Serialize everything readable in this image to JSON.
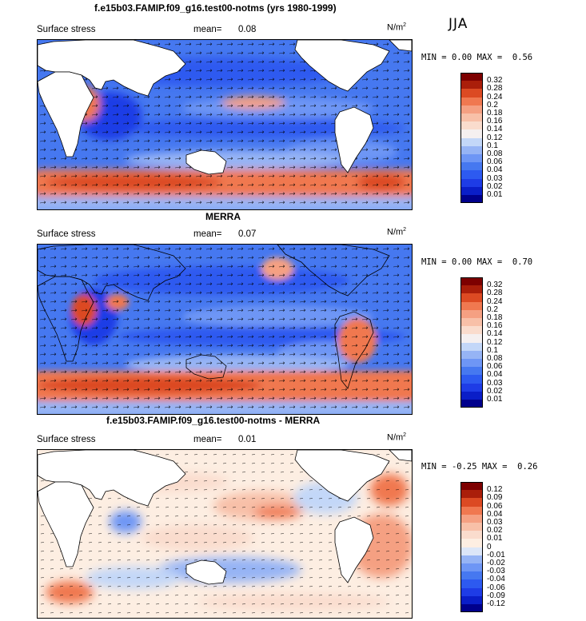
{
  "season": "JJA",
  "unit": "N/m",
  "unit_exp": "2",
  "panels": [
    {
      "title": "f.e15b03.FAMIP.f09_g16.test00-notms (yrs 1980-1999)",
      "variable": "Surface stress",
      "mean_label": "mean=",
      "mean_value": "0.08",
      "min_label": "MIN =",
      "min_value": "0.00",
      "max_label": "MAX =",
      "max_value": "0.56",
      "colorbar_levels": [
        "0.32",
        "0.28",
        "0.24",
        "0.2",
        "0.18",
        "0.16",
        "0.14",
        "0.12",
        "0.1",
        "0.08",
        "0.06",
        "0.04",
        "0.03",
        "0.02",
        "0.01"
      ]
    },
    {
      "title": "MERRA",
      "variable": "Surface stress",
      "mean_label": "mean=",
      "mean_value": "0.07",
      "min_label": "MIN =",
      "min_value": "0.00",
      "max_label": "MAX =",
      "max_value": "0.70",
      "colorbar_levels": [
        "0.32",
        "0.28",
        "0.24",
        "0.2",
        "0.18",
        "0.16",
        "0.14",
        "0.12",
        "0.1",
        "0.08",
        "0.06",
        "0.04",
        "0.03",
        "0.02",
        "0.01"
      ]
    },
    {
      "title": "f.e15b03.FAMIP.f09_g16.test00-notms - MERRA",
      "variable": "Surface stress",
      "mean_label": "mean=",
      "mean_value": "0.01",
      "min_label": "MIN =",
      "min_value": "-0.25",
      "max_label": "MAX =",
      "max_value": "0.26",
      "colorbar_levels": [
        "0.12",
        "0.09",
        "0.06",
        "0.04",
        "0.03",
        "0.02",
        "0.01",
        "0",
        "-0.01",
        "-0.02",
        "-0.03",
        "-0.04",
        "-0.06",
        "-0.09",
        "-0.12"
      ]
    }
  ],
  "chart_data": [
    {
      "type": "heatmap",
      "title": "f.e15b03.FAMIP.f09_g16.test00-notms (yrs 1980-1999)",
      "field": "Surface stress",
      "mean": 0.08,
      "min": 0.0,
      "max": 0.56,
      "levels": [
        0.01,
        0.02,
        0.03,
        0.04,
        0.06,
        0.08,
        0.1,
        0.12,
        0.14,
        0.16,
        0.18,
        0.2,
        0.24,
        0.28,
        0.32
      ],
      "colors": [
        "#00008c",
        "#0a1ec8",
        "#1e3ce6",
        "#2d5af0",
        "#4678f0",
        "#6e96f5",
        "#96b4f5",
        "#c3d7f8",
        "#f5f0f0",
        "#fadccd",
        "#f8c0a8",
        "#f5a082",
        "#f07850",
        "#dc4a23",
        "#aa1e0a",
        "#7d0000"
      ]
    },
    {
      "type": "heatmap",
      "title": "MERRA",
      "field": "Surface stress",
      "mean": 0.07,
      "min": 0.0,
      "max": 0.7,
      "levels": [
        0.01,
        0.02,
        0.03,
        0.04,
        0.06,
        0.08,
        0.1,
        0.12,
        0.14,
        0.16,
        0.18,
        0.2,
        0.24,
        0.28,
        0.32
      ],
      "colors": [
        "#00008c",
        "#0a1ec8",
        "#1e3ce6",
        "#2d5af0",
        "#4678f0",
        "#6e96f5",
        "#96b4f5",
        "#c3d7f8",
        "#f5f0f0",
        "#fadccd",
        "#f8c0a8",
        "#f5a082",
        "#f07850",
        "#dc4a23",
        "#aa1e0a",
        "#7d0000"
      ]
    },
    {
      "type": "heatmap",
      "title": "f.e15b03.FAMIP.f09_g16.test00-notms - MERRA",
      "field": "Surface stress",
      "mean": 0.01,
      "min": -0.25,
      "max": 0.26,
      "levels": [
        -0.12,
        -0.09,
        -0.06,
        -0.04,
        -0.03,
        -0.02,
        -0.01,
        0,
        0.01,
        0.02,
        0.03,
        0.04,
        0.06,
        0.09,
        0.12
      ],
      "colors": [
        "#00008c",
        "#0a1ec8",
        "#1e3ce6",
        "#2d5af0",
        "#4678f0",
        "#6e96f5",
        "#96b4f5",
        "#dce6f8",
        "#fdeee2",
        "#fadccd",
        "#f8c0a8",
        "#f5a082",
        "#f07850",
        "#dc4a23",
        "#aa1e0a",
        "#7d0000"
      ]
    }
  ]
}
